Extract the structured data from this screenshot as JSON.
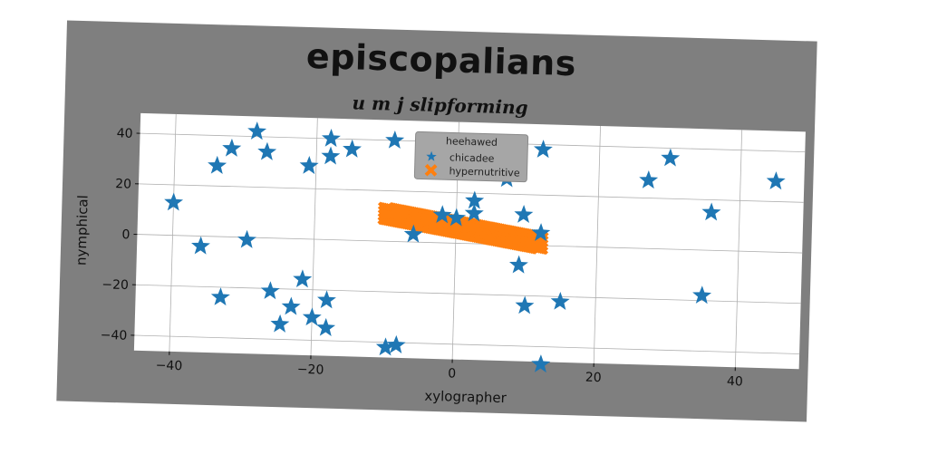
{
  "chart_data": {
    "type": "scatter",
    "title": "episcopalians",
    "subtitle": "u m j slipforming",
    "xlabel": "xylographer",
    "ylabel": "nymphical",
    "xlim": [
      -45,
      49
    ],
    "ylim": [
      -46,
      48
    ],
    "xticks": [
      -40,
      -20,
      0,
      20,
      40
    ],
    "yticks": [
      -40,
      -20,
      0,
      20,
      40
    ],
    "xtick_labels": [
      "−40",
      "−20",
      "0",
      "20",
      "40"
    ],
    "ytick_labels": [
      "−40",
      "−20",
      "0",
      "20",
      "40"
    ],
    "grid": true,
    "legend": {
      "title": "heehawed",
      "placement": "top-center"
    },
    "colors": {
      "figure_bg": "#7f7f7f",
      "plot_bg": "#ffffff",
      "grid": "#b0b0b0",
      "series_1": "#1f77b4",
      "series_2": "#ff7f0e",
      "legend_bg": "#a6a6a6"
    },
    "series": [
      {
        "name": "chicadee",
        "marker": "star",
        "color": "#1f77b4",
        "points": [
          [
            -28.5,
            42
          ],
          [
            -18,
            40
          ],
          [
            -9,
            40
          ],
          [
            -15,
            36
          ],
          [
            -32,
            35
          ],
          [
            -27,
            34
          ],
          [
            -18,
            33
          ],
          [
            -34,
            28
          ],
          [
            -21,
            29
          ],
          [
            -40,
            13
          ],
          [
            -36,
            -4
          ],
          [
            -29.5,
            -1
          ],
          [
            -33,
            -24
          ],
          [
            -26,
            -21
          ],
          [
            -21.5,
            -16
          ],
          [
            -23,
            -27
          ],
          [
            -18,
            -24
          ],
          [
            -20,
            -31
          ],
          [
            -24.5,
            -34
          ],
          [
            -18,
            -35
          ],
          [
            -9.5,
            -42
          ],
          [
            -8,
            -41
          ],
          [
            12,
            38
          ],
          [
            2.5,
            17
          ],
          [
            2.5,
            12
          ],
          [
            -2,
            11
          ],
          [
            0,
            10
          ],
          [
            -6,
            3
          ],
          [
            9.5,
            12
          ],
          [
            12,
            5
          ],
          [
            9,
            -8
          ],
          [
            10,
            -24
          ],
          [
            15,
            -22
          ],
          [
            12.5,
            -47
          ],
          [
            27,
            27
          ],
          [
            30,
            36
          ],
          [
            45,
            28
          ],
          [
            36,
            15
          ],
          [
            35,
            -18
          ],
          [
            7,
            26
          ]
        ]
      },
      {
        "name": "hypernutritive",
        "marker": "x",
        "color": "#ff7f0e",
        "x_range": [
          -10,
          12
        ],
        "y_range": [
          11,
          1
        ]
      }
    ]
  }
}
